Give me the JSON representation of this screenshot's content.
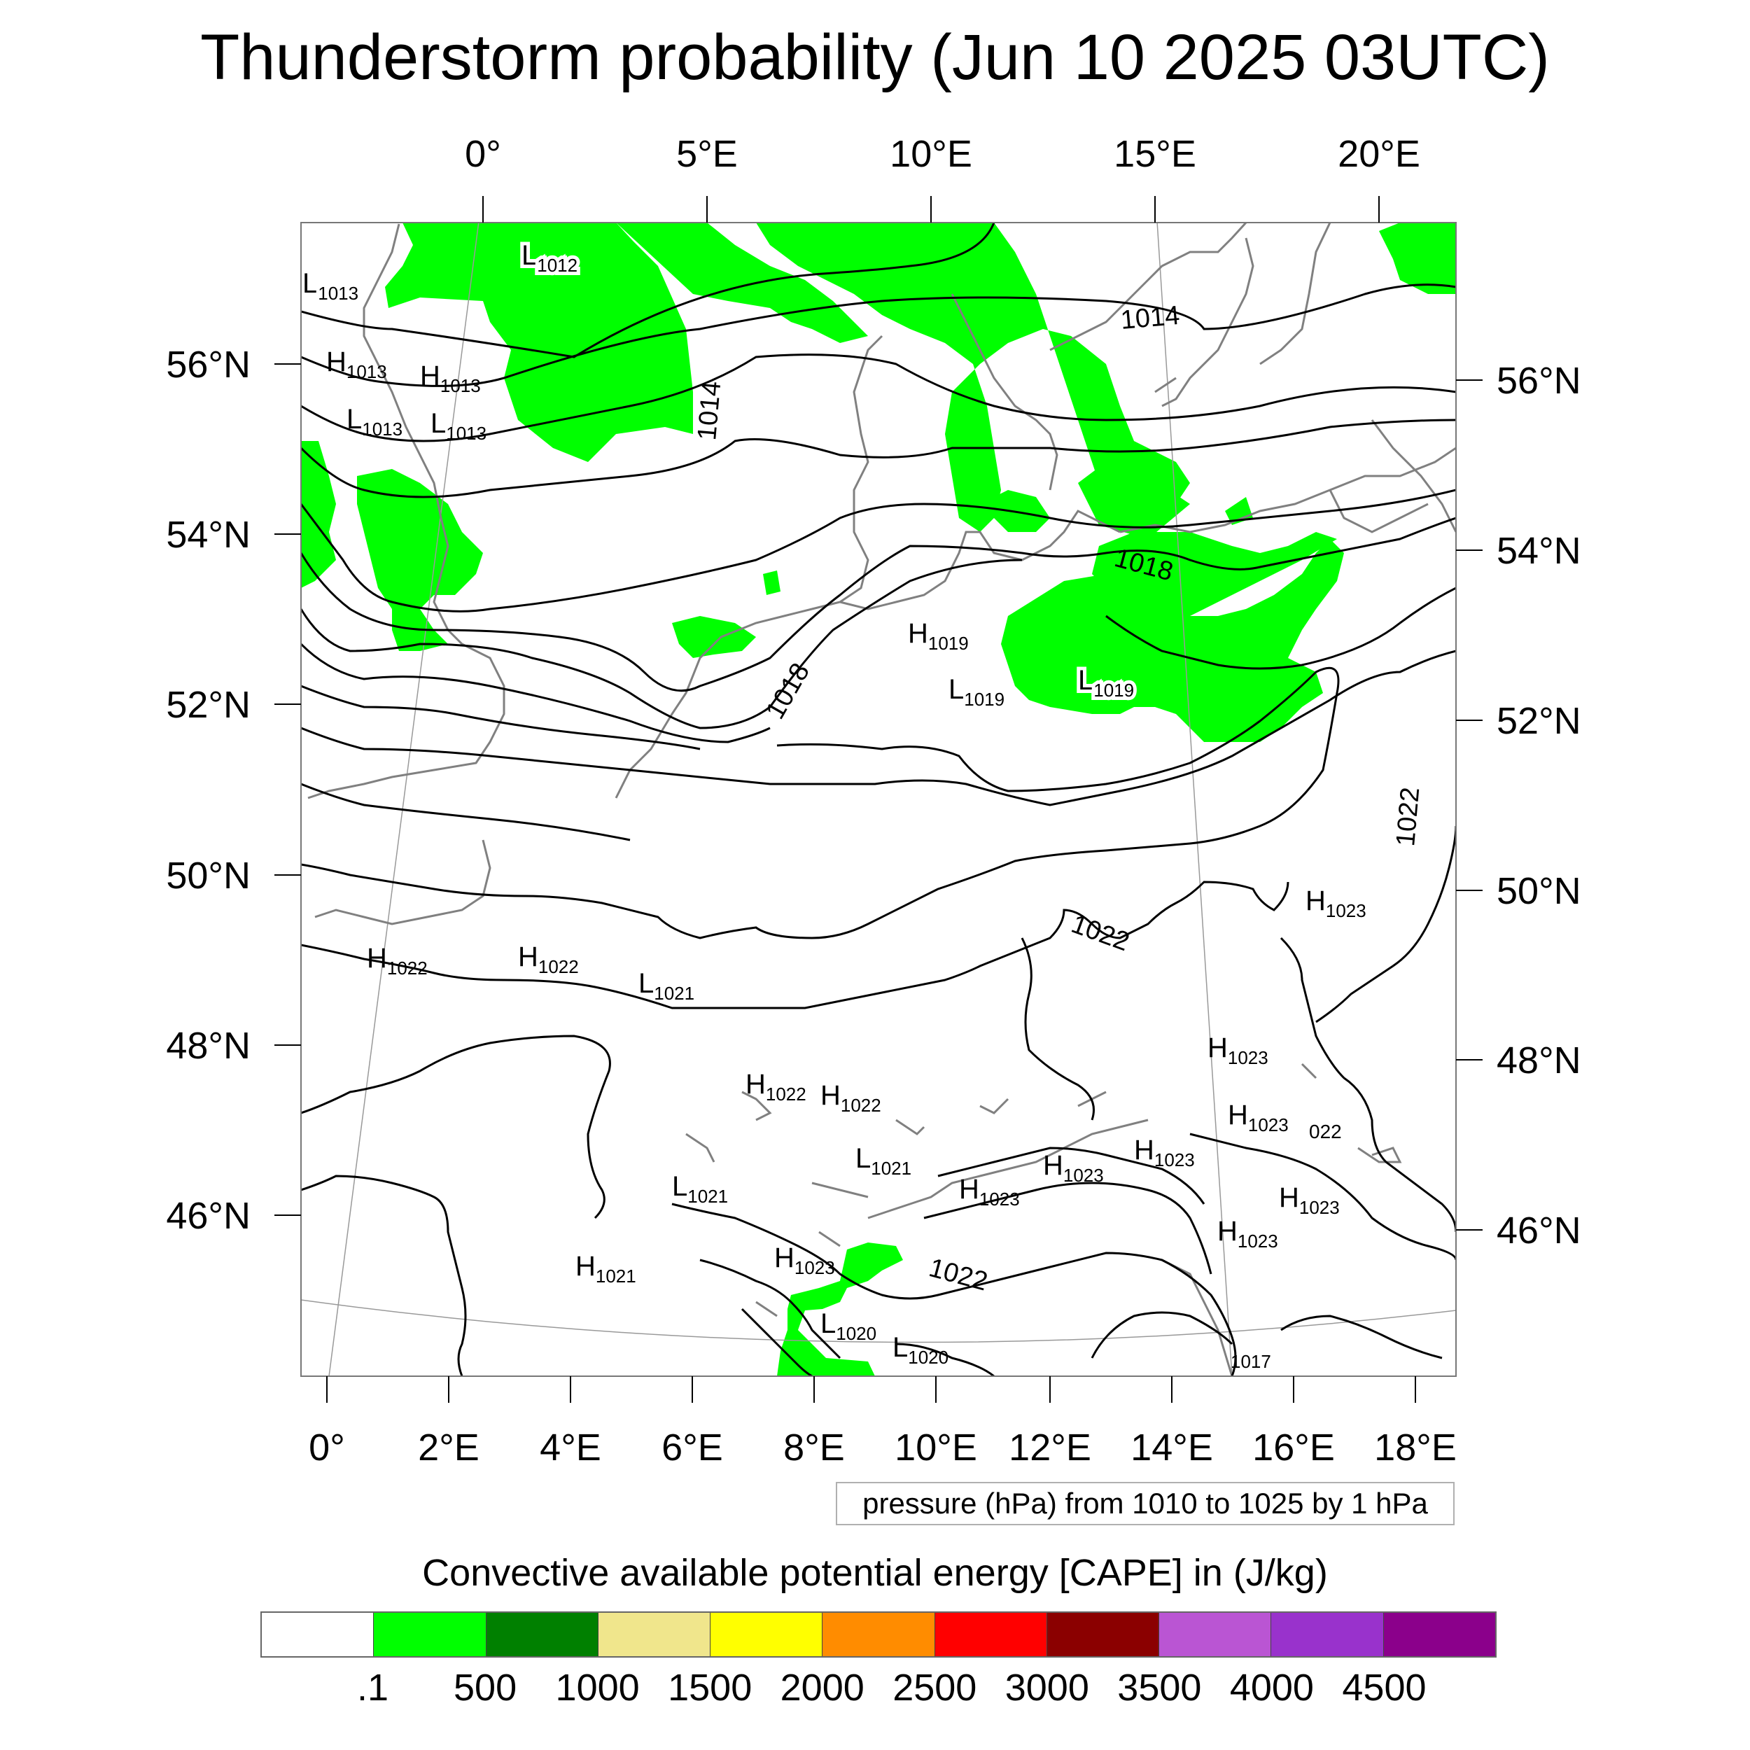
{
  "title": "Thunderstorm probability (Jun 10 2025 03UTC)",
  "top_axis_labels": [
    "0°",
    "5°E",
    "10°E",
    "15°E",
    "20°E"
  ],
  "bottom_axis_labels": [
    "0°",
    "2°E",
    "4°E",
    "6°E",
    "8°E",
    "10°E",
    "12°E",
    "14°E",
    "16°E",
    "18°E"
  ],
  "left_axis_labels": [
    "56°N",
    "54°N",
    "52°N",
    "50°N",
    "48°N",
    "46°N"
  ],
  "right_axis_labels": [
    "56°N",
    "54°N",
    "52°N",
    "50°N",
    "48°N",
    "46°N"
  ],
  "pressure_centers": [
    {
      "kind": "L",
      "value": "1013"
    },
    {
      "kind": "L",
      "value": "1012"
    },
    {
      "kind": "H",
      "value": "1013"
    },
    {
      "kind": "H",
      "value": "1013"
    },
    {
      "kind": "L",
      "value": "1013"
    },
    {
      "kind": "L",
      "value": "1013"
    },
    {
      "kind": "H",
      "value": "1019"
    },
    {
      "kind": "L",
      "value": "1019"
    },
    {
      "kind": "L",
      "value": "1019"
    },
    {
      "kind": "H",
      "value": "1022"
    },
    {
      "kind": "H",
      "value": "1022"
    },
    {
      "kind": "L",
      "value": "1021"
    },
    {
      "kind": "H",
      "value": "1023"
    },
    {
      "kind": "H",
      "value": "1023"
    },
    {
      "kind": "H",
      "value": "1022"
    },
    {
      "kind": "H",
      "value": "1022"
    },
    {
      "kind": "H",
      "value": "1023"
    },
    {
      "kind": "L",
      "value": "1021"
    },
    {
      "kind": "H",
      "value": "1023"
    },
    {
      "kind": "H",
      "value": "1023"
    },
    {
      "kind": "L",
      "value": "1021"
    },
    {
      "kind": "H",
      "value": "1023"
    },
    {
      "kind": "H",
      "value": "1023"
    },
    {
      "kind": "H",
      "value": "1021"
    },
    {
      "kind": "H",
      "value": "1023"
    },
    {
      "kind": "H",
      "value": "1023"
    },
    {
      "kind": "L",
      "value": "1020"
    },
    {
      "kind": "L",
      "value": "1020"
    }
  ],
  "contour_labels": [
    "1014",
    "1014",
    "1018",
    "1018",
    "1022",
    "1022",
    "1022",
    "022",
    "1017"
  ],
  "contour_note": "pressure (hPa) from 1010 to 1025 by 1 hPa",
  "colorbar": {
    "title": "Convective available potential energy [CAPE] in (J/kg)",
    "colors": [
      "#ffffff",
      "#00ff00",
      "#008000",
      "#f0e68c",
      "#ffff00",
      "#ff8c00",
      "#ff0000",
      "#8b0000",
      "#ba55d3",
      "#9932cc",
      "#8b008b"
    ],
    "labels": [
      ".1",
      "500",
      "1000",
      "1500",
      "2000",
      "2500",
      "3000",
      "3500",
      "4000",
      "4500"
    ]
  }
}
